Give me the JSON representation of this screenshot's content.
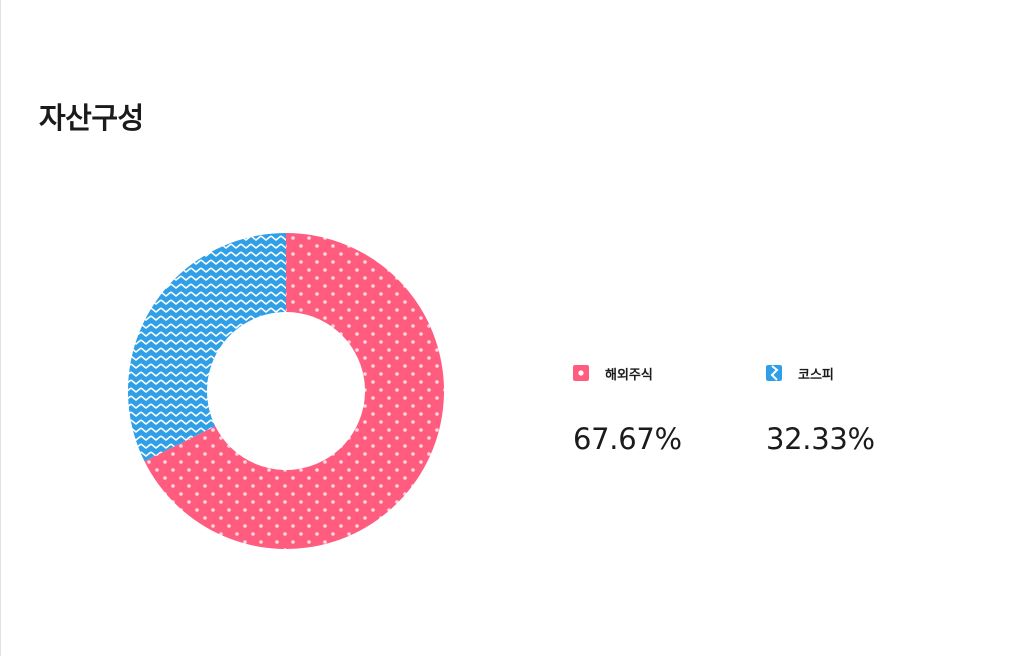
{
  "title": "자산구성",
  "chart_data": {
    "type": "pie",
    "donut": true,
    "categories": [
      "해외주식",
      "코스피"
    ],
    "values": [
      67.67,
      32.33
    ],
    "value_labels": [
      "67.67%",
      "32.33%"
    ],
    "colors": [
      "#ff5c7f",
      "#2f9fe8"
    ],
    "patterns": [
      "dots",
      "zigzag"
    ],
    "start_angle_deg": 0,
    "direction": "clockwise",
    "legend_position": "right"
  }
}
